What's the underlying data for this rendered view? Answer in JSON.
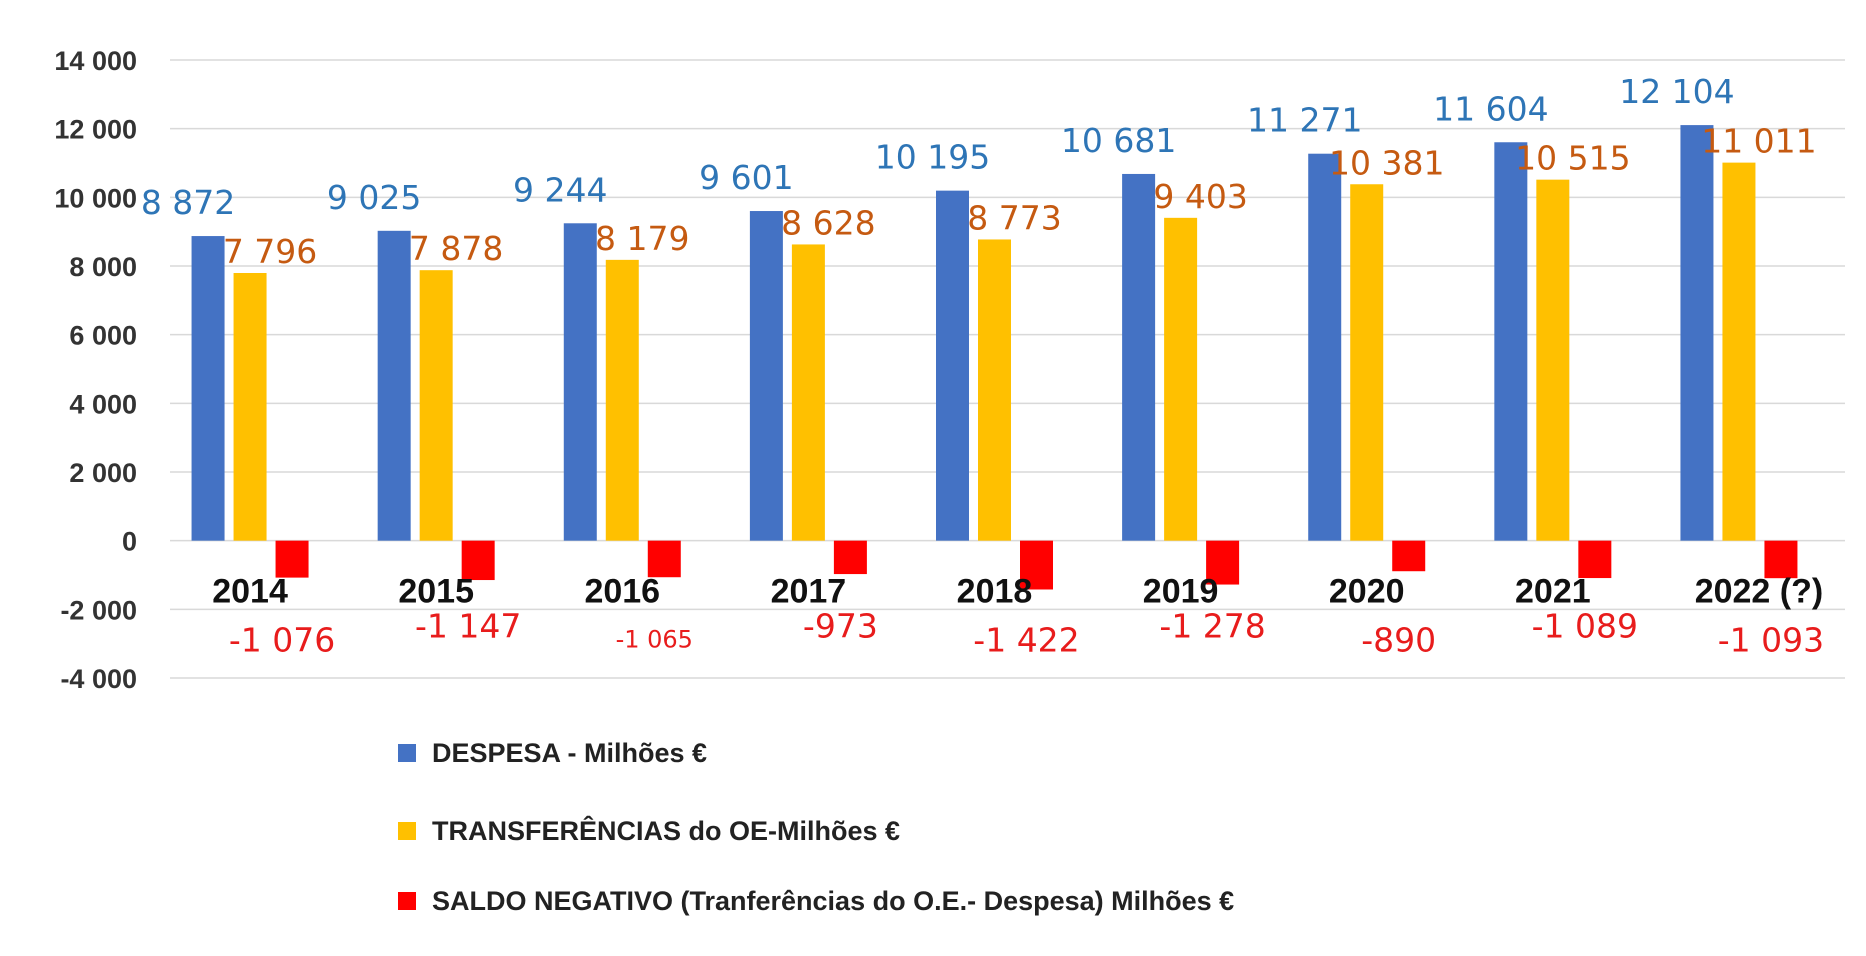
{
  "chart_data": {
    "type": "bar",
    "title": "",
    "xlabel": "",
    "ylabel": "",
    "ylim": [
      -4000,
      14000
    ],
    "yticks": [
      -4000,
      -2000,
      0,
      2000,
      4000,
      6000,
      8000,
      10000,
      12000,
      14000
    ],
    "ytick_labels": [
      "-4 000",
      "-2 000",
      "0",
      "2 000",
      "4 000",
      "6 000",
      "8 000",
      "10 000",
      "12 000",
      "14 000"
    ],
    "grid": true,
    "legend_position": "bottom",
    "categories": [
      "2014",
      "2015",
      "2016",
      "2017",
      "2018",
      "2019",
      "2020",
      "2021",
      "2022 (?)"
    ],
    "series": [
      {
        "name": "DESPESA - Milhões €",
        "color": "#4472C4",
        "label_color": "#2E75B6",
        "values": [
          8872,
          9025,
          9244,
          9601,
          10195,
          10681,
          11271,
          11604,
          12104
        ],
        "labels": [
          "8 872",
          "9 025",
          "9 244",
          "9 601",
          "10 195",
          "10 681",
          "11 271",
          "11 604",
          "12 104"
        ]
      },
      {
        "name": "TRANSFERÊNCIAS do OE-Milhões €",
        "color": "#FFC000",
        "label_color": "#C55A11",
        "values": [
          7796,
          7878,
          8179,
          8628,
          8773,
          9403,
          10381,
          10515,
          11011
        ],
        "labels": [
          "7 796",
          "7 878",
          "8 179",
          "8 628",
          "8 773",
          "9 403",
          "10 381",
          "10 515",
          "11 011"
        ]
      },
      {
        "name": "SALDO NEGATIVO (Tranferências do O.E.- Despesa) Milhões €",
        "color": "#FF0000",
        "label_color": "#E81C1C",
        "values": [
          -1076,
          -1147,
          -1065,
          -973,
          -1422,
          -1278,
          -890,
          -1089,
          -1093
        ],
        "labels": [
          "-1 076",
          "-1 147",
          "-1 065",
          "-973",
          "-1 422",
          "-1 278",
          "-890",
          "-1 089",
          "-1 093"
        ]
      }
    ]
  }
}
